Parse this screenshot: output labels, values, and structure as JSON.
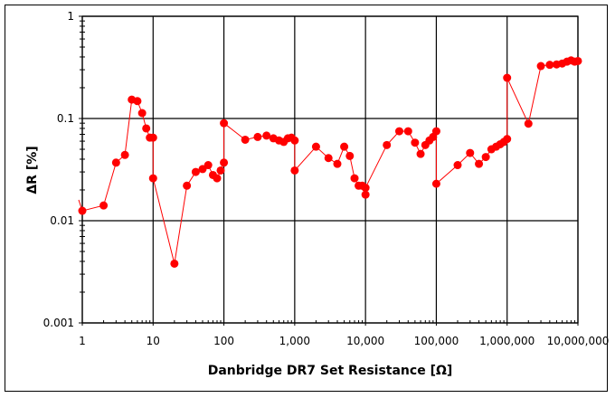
{
  "chart_data": {
    "type": "line",
    "title": "",
    "xlabel": "Danbridge DR7 Set Resistance [Ω]",
    "ylabel": "ΔR [%]",
    "xscale": "log",
    "yscale": "log",
    "xlim": [
      1,
      10000000
    ],
    "ylim": [
      0.001,
      1
    ],
    "grid": true,
    "legend": null,
    "x_tick_labels": [
      "1",
      "10",
      "100",
      "1,000",
      "10,000",
      "100,000",
      "1,000,000",
      "10,000,000"
    ],
    "x_tick_values": [
      1,
      10,
      100,
      1000,
      10000,
      100000,
      1000000,
      10000000
    ],
    "y_tick_labels": [
      "1",
      "0.1",
      "0.01",
      "0.001"
    ],
    "y_tick_values": [
      1,
      0.1,
      0.01,
      0.001
    ],
    "series": [
      {
        "name": "ΔR",
        "color": "#ff0000",
        "marker": "circle",
        "points": [
          [
            1,
            0.0125
          ],
          [
            2,
            0.0141
          ],
          [
            3,
            0.037
          ],
          [
            4,
            0.044
          ],
          [
            5,
            0.153
          ],
          [
            6,
            0.148
          ],
          [
            7,
            0.113
          ],
          [
            8,
            0.08
          ],
          [
            9,
            0.065
          ],
          [
            10,
            0.065
          ],
          [
            10,
            0.026
          ],
          [
            20,
            0.0038
          ],
          [
            30,
            0.022
          ],
          [
            40,
            0.03
          ],
          [
            50,
            0.032
          ],
          [
            60,
            0.035
          ],
          [
            70,
            0.028
          ],
          [
            80,
            0.026
          ],
          [
            90,
            0.031
          ],
          [
            100,
            0.037
          ],
          [
            100,
            0.09
          ],
          [
            200,
            0.062
          ],
          [
            300,
            0.066
          ],
          [
            400,
            0.068
          ],
          [
            500,
            0.064
          ],
          [
            600,
            0.061
          ],
          [
            700,
            0.059
          ],
          [
            800,
            0.064
          ],
          [
            900,
            0.065
          ],
          [
            1000,
            0.061
          ],
          [
            1000,
            0.031
          ],
          [
            2000,
            0.053
          ],
          [
            3000,
            0.041
          ],
          [
            4000,
            0.036
          ],
          [
            5000,
            0.053
          ],
          [
            6000,
            0.043
          ],
          [
            7000,
            0.026
          ],
          [
            8000,
            0.022
          ],
          [
            9000,
            0.022
          ],
          [
            10000,
            0.018
          ],
          [
            10000,
            0.021
          ],
          [
            20000,
            0.055
          ],
          [
            30000,
            0.075
          ],
          [
            40000,
            0.075
          ],
          [
            50000,
            0.058
          ],
          [
            60000,
            0.045
          ],
          [
            70000,
            0.055
          ],
          [
            80000,
            0.061
          ],
          [
            90000,
            0.066
          ],
          [
            100000,
            0.075
          ],
          [
            100000,
            0.023
          ],
          [
            200000,
            0.035
          ],
          [
            300000,
            0.046
          ],
          [
            400000,
            0.036
          ],
          [
            500000,
            0.042
          ],
          [
            600000,
            0.05
          ],
          [
            700000,
            0.053
          ],
          [
            800000,
            0.056
          ],
          [
            900000,
            0.059
          ],
          [
            1000000,
            0.063
          ],
          [
            1000000,
            0.25
          ],
          [
            2000000,
            0.089
          ],
          [
            3000000,
            0.326
          ],
          [
            4000000,
            0.335
          ],
          [
            5000000,
            0.338
          ],
          [
            6000000,
            0.345
          ],
          [
            7000000,
            0.36
          ],
          [
            8000000,
            0.37
          ],
          [
            9000000,
            0.36
          ],
          [
            10000000,
            0.365
          ]
        ]
      }
    ]
  }
}
